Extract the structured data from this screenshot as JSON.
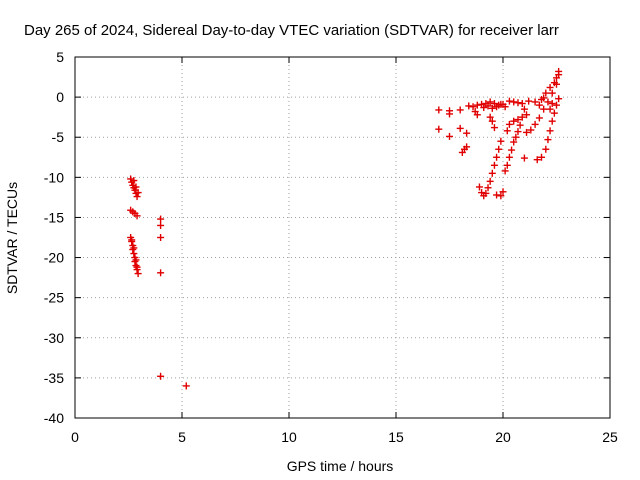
{
  "chart_data": {
    "type": "scatter",
    "title": "Day 265 of 2024, Sidereal Day-to-day VTEC variation (SDTVAR) for receiver larr",
    "xlabel": "GPS time / hours",
    "ylabel": "SDTVAR / TECUs",
    "xlim": [
      0,
      25
    ],
    "ylim": [
      -40,
      5
    ],
    "xticks": [
      "0",
      "5",
      "10",
      "15",
      "20",
      "25"
    ],
    "xtick_values": [
      0,
      5,
      10,
      15,
      20,
      25
    ],
    "yticks": [
      "5",
      "0",
      "-5",
      "-10",
      "-15",
      "-20",
      "-25",
      "-30",
      "-35",
      "-40"
    ],
    "ytick_values": [
      5,
      0,
      -5,
      -10,
      -15,
      -20,
      -25,
      -30,
      -35,
      -40
    ],
    "grid": true,
    "marker": "plus",
    "color": "#e00000",
    "series": [
      {
        "points": [
          [
            2.6,
            -10.2
          ],
          [
            2.65,
            -10.6
          ],
          [
            2.7,
            -11.0
          ],
          [
            2.75,
            -11.3
          ],
          [
            2.8,
            -11.6
          ],
          [
            2.85,
            -12.0
          ],
          [
            2.9,
            -12.4
          ],
          [
            2.75,
            -10.4
          ],
          [
            2.85,
            -11.2
          ],
          [
            2.95,
            -11.9
          ],
          [
            2.6,
            -14.1
          ],
          [
            2.7,
            -14.3
          ],
          [
            2.8,
            -14.5
          ],
          [
            2.9,
            -14.8
          ],
          [
            2.6,
            -17.5
          ],
          [
            2.65,
            -18.0
          ],
          [
            2.7,
            -18.5
          ],
          [
            2.7,
            -19.0
          ],
          [
            2.75,
            -19.5
          ],
          [
            2.8,
            -20.0
          ],
          [
            2.8,
            -20.5
          ],
          [
            2.85,
            -21.0
          ],
          [
            2.9,
            -21.5
          ],
          [
            2.95,
            -22.0
          ],
          [
            2.65,
            -17.8
          ],
          [
            2.75,
            -18.8
          ],
          [
            2.85,
            -20.3
          ],
          [
            2.9,
            -21.2
          ],
          [
            4.0,
            -15.2
          ],
          [
            4.0,
            -16.0
          ],
          [
            4.0,
            -17.5
          ],
          [
            4.0,
            -21.9
          ],
          [
            4.0,
            -34.8
          ],
          [
            5.2,
            -36.0
          ],
          [
            17.0,
            -1.6
          ],
          [
            17.0,
            -4.0
          ],
          [
            17.5,
            -1.7
          ],
          [
            17.5,
            -2.1
          ],
          [
            17.5,
            -4.9
          ],
          [
            18.0,
            -1.6
          ],
          [
            18.0,
            -3.9
          ],
          [
            18.3,
            -4.5
          ],
          [
            18.1,
            -6.9
          ],
          [
            18.2,
            -6.5
          ],
          [
            18.3,
            -6.2
          ],
          [
            18.4,
            -1.1
          ],
          [
            18.6,
            -1.2
          ],
          [
            18.8,
            -2.2
          ],
          [
            18.7,
            -1.8
          ],
          [
            18.8,
            -1.0
          ],
          [
            19.0,
            -0.9
          ],
          [
            19.2,
            -0.8
          ],
          [
            19.4,
            -0.6
          ],
          [
            19.6,
            -0.8
          ],
          [
            19.8,
            -1.0
          ],
          [
            20.0,
            -0.9
          ],
          [
            20.3,
            -0.5
          ],
          [
            20.5,
            -0.6
          ],
          [
            20.7,
            -0.7
          ],
          [
            19.1,
            -1.3
          ],
          [
            19.3,
            -1.1
          ],
          [
            19.5,
            -1.4
          ],
          [
            19.7,
            -1.2
          ],
          [
            19.9,
            -0.9
          ],
          [
            20.1,
            -1.2
          ],
          [
            18.9,
            -11.2
          ],
          [
            19.0,
            -11.9
          ],
          [
            19.1,
            -12.3
          ],
          [
            19.2,
            -12.0
          ],
          [
            19.3,
            -11.3
          ],
          [
            19.4,
            -10.5
          ],
          [
            19.5,
            -9.5
          ],
          [
            19.6,
            -8.5
          ],
          [
            19.7,
            -7.5
          ],
          [
            19.8,
            -6.5
          ],
          [
            19.9,
            -5.5
          ],
          [
            19.5,
            -3.0
          ],
          [
            19.4,
            -2.5
          ],
          [
            19.6,
            -3.8
          ],
          [
            19.7,
            -12.2
          ],
          [
            19.9,
            -12.3
          ],
          [
            20.0,
            -11.8
          ],
          [
            20.1,
            -9.2
          ],
          [
            20.2,
            -8.5
          ],
          [
            20.3,
            -7.5
          ],
          [
            20.4,
            -6.6
          ],
          [
            20.5,
            -5.6
          ],
          [
            20.6,
            -5.0
          ],
          [
            20.7,
            -4.3
          ],
          [
            20.8,
            -3.5
          ],
          [
            20.2,
            -4.2
          ],
          [
            20.3,
            -3.4
          ],
          [
            20.5,
            -3.0
          ],
          [
            20.7,
            -2.8
          ],
          [
            20.9,
            -2.5
          ],
          [
            21.1,
            -2.2
          ],
          [
            21.0,
            -1.5
          ],
          [
            20.9,
            -0.8
          ],
          [
            21.0,
            -7.6
          ],
          [
            21.1,
            -4.4
          ],
          [
            21.3,
            -4.1
          ],
          [
            21.5,
            -3.4
          ],
          [
            21.7,
            -2.6
          ],
          [
            21.9,
            -1.5
          ],
          [
            22.1,
            -0.6
          ],
          [
            22.3,
            0.5
          ],
          [
            22.5,
            1.6
          ],
          [
            22.6,
            2.8
          ],
          [
            21.6,
            -7.8
          ],
          [
            21.8,
            -7.5
          ],
          [
            22.0,
            -6.5
          ],
          [
            22.1,
            -5.3
          ],
          [
            22.2,
            -4.2
          ],
          [
            22.3,
            -3.0
          ],
          [
            22.4,
            -2.0
          ],
          [
            22.5,
            -1.0
          ],
          [
            22.6,
            -0.2
          ],
          [
            21.9,
            -0.1
          ],
          [
            22.0,
            0.5
          ],
          [
            22.2,
            1.2
          ],
          [
            22.4,
            1.8
          ],
          [
            22.5,
            2.4
          ],
          [
            22.6,
            3.2
          ],
          [
            22.2,
            -1.5
          ],
          [
            22.3,
            -0.8
          ],
          [
            21.7,
            -1.0
          ],
          [
            21.8,
            -0.3
          ],
          [
            21.2,
            -0.5
          ],
          [
            21.5,
            -0.6
          ]
        ]
      }
    ]
  }
}
